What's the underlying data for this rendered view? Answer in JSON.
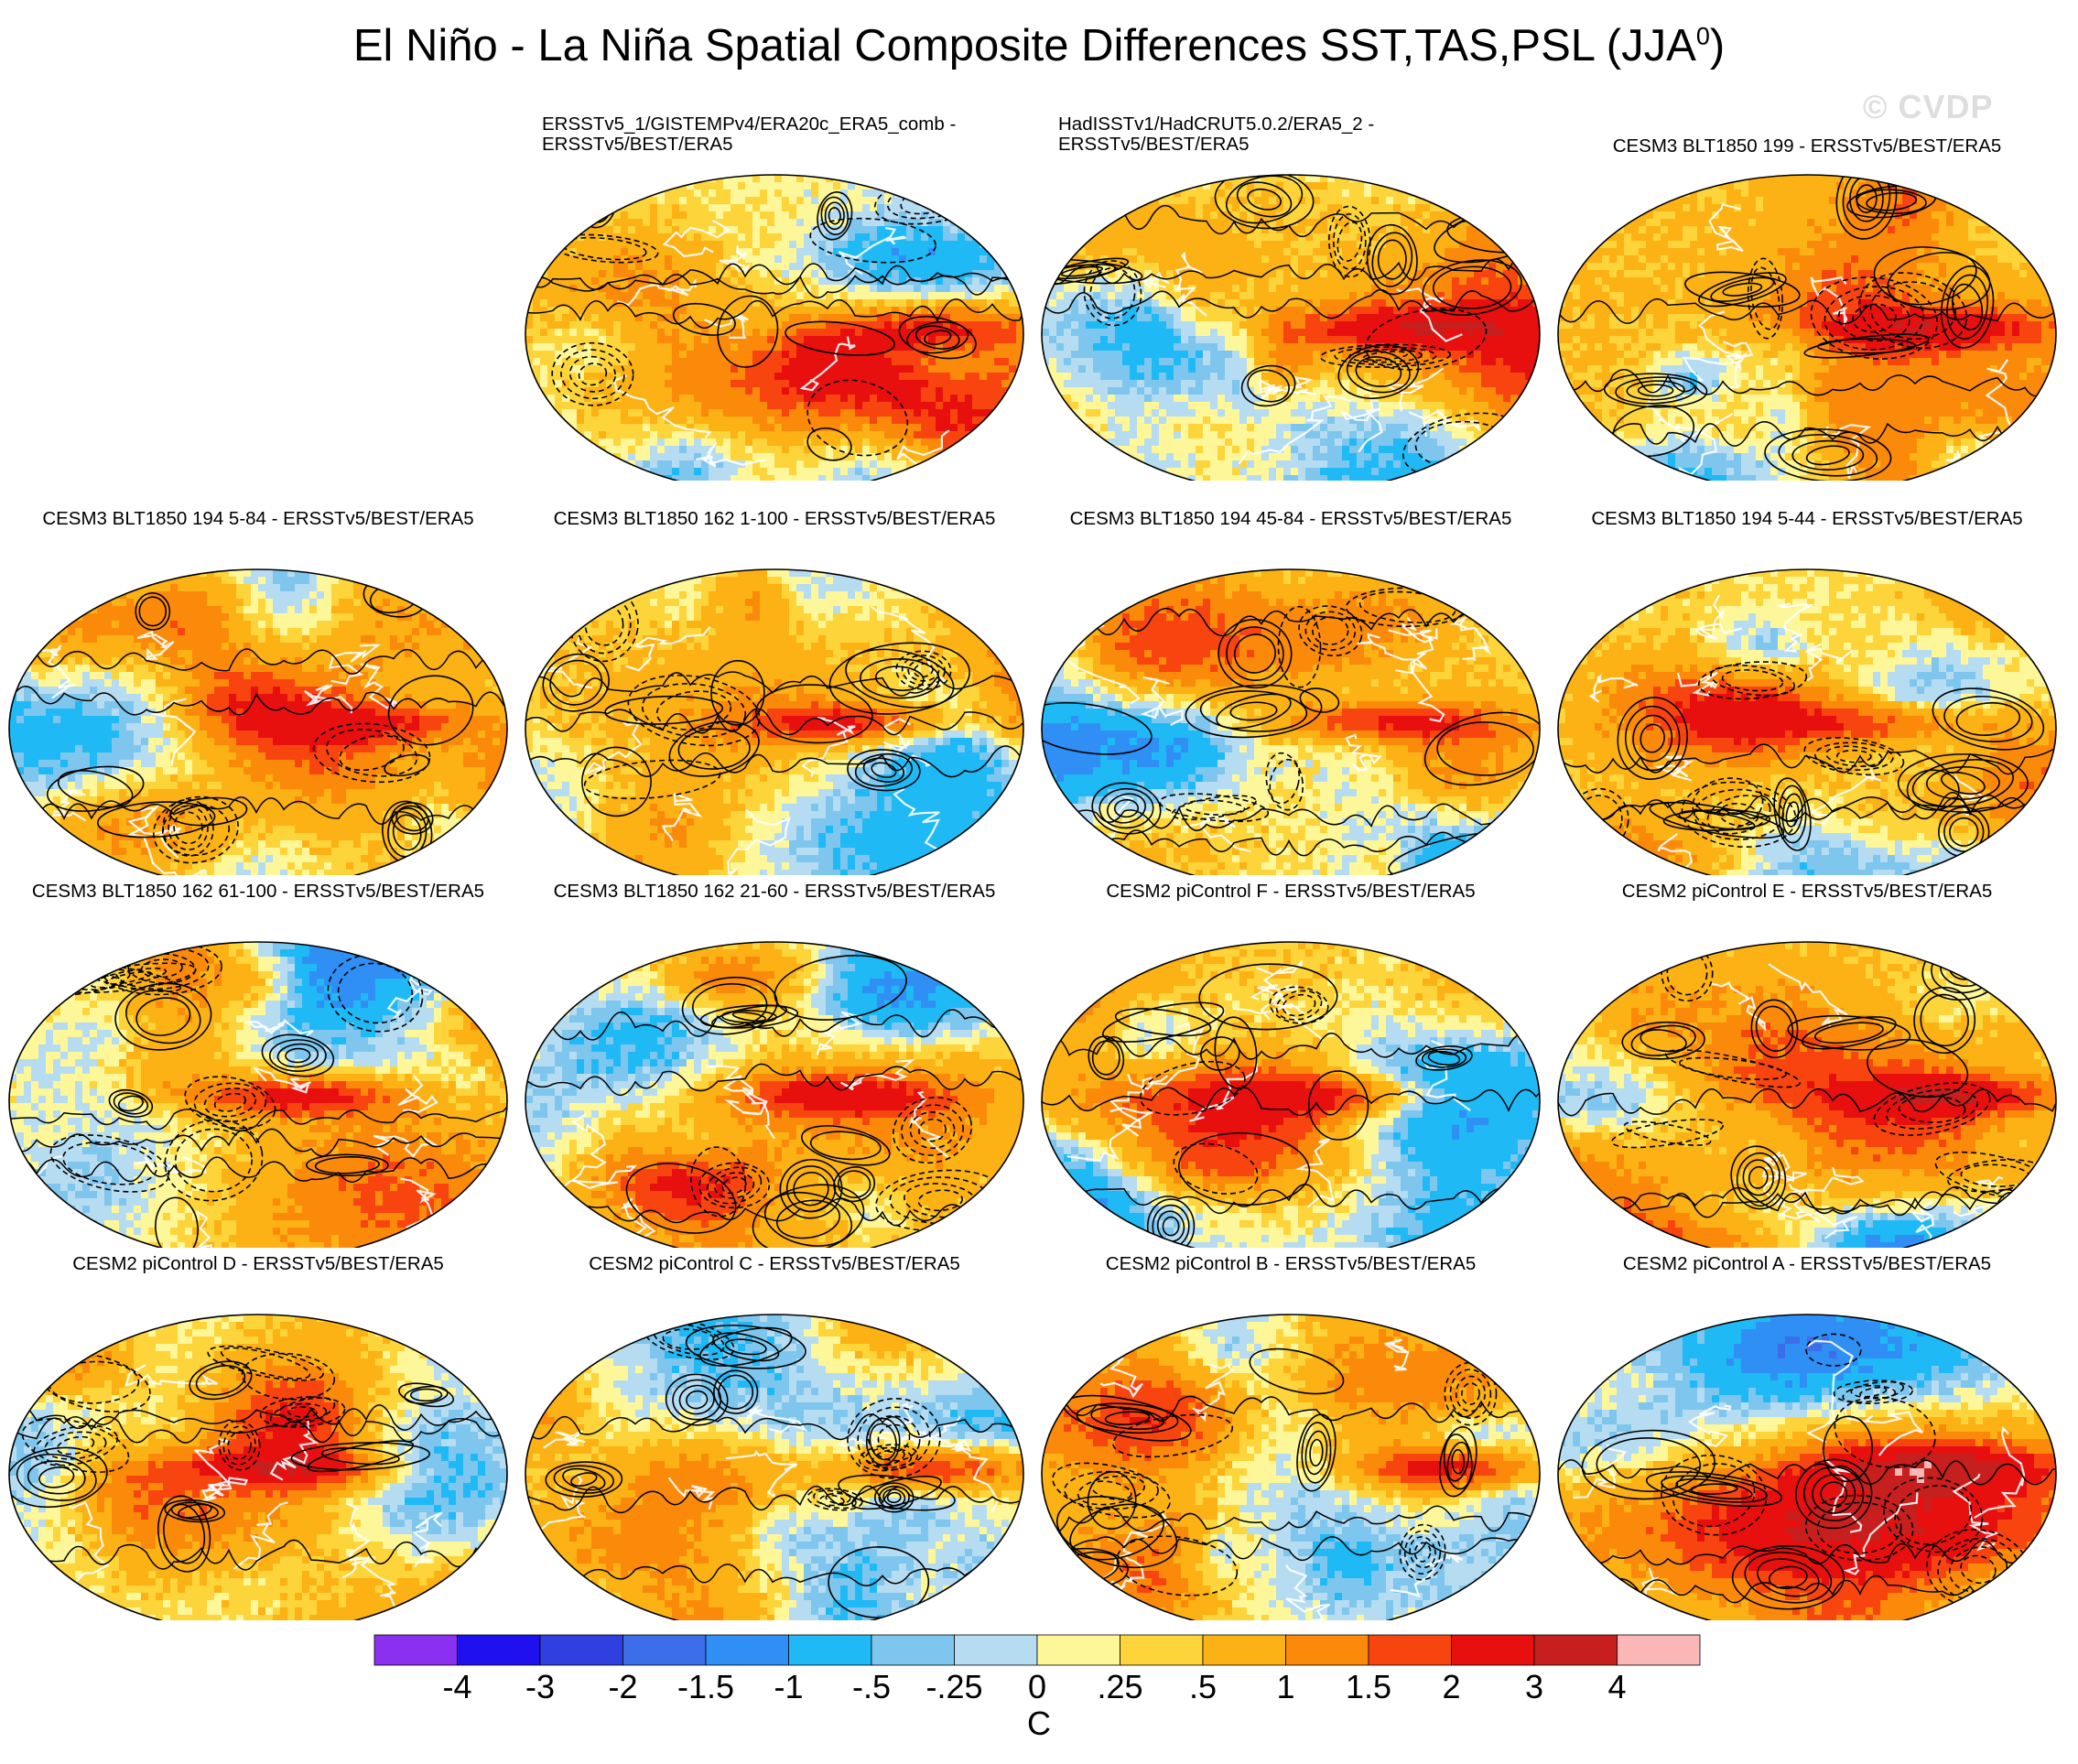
{
  "title": "El Niño - La Niña Spatial Composite Differences SST,TAS,PSL (JJA",
  "title_superscript": "0",
  "title_close": ")",
  "watermark": "© CVDP",
  "panels": [
    {
      "title": "ERSSTv5_1/GISTEMPv4/ERA20c_ERA5_comb -",
      "title2": "ERSSTv5/BEST/ERA5",
      "seed": 11,
      "bias": 0.25
    },
    {
      "title": "HadISSTv1/HadCRUT5.0.2/ERA5_2 -",
      "title2": "ERSSTv5/BEST/ERA5",
      "seed": 23,
      "bias": -0.2
    },
    {
      "title": "CESM3 BLT1850 199 - ERSSTv5/BEST/ERA5",
      "title2": "",
      "seed": 37,
      "bias": 0.55
    },
    {
      "title": "CESM3 BLT1850 194 5-84 - ERSSTv5/BEST/ERA5",
      "title2": "",
      "seed": 41,
      "bias": 0.2
    },
    {
      "title": "CESM3 BLT1850 162 1-100 - ERSSTv5/BEST/ERA5",
      "title2": "",
      "seed": 53,
      "bias": 0.15
    },
    {
      "title": "CESM3 BLT1850 194 45-84 - ERSSTv5/BEST/ERA5",
      "title2": "",
      "seed": 67,
      "bias": 0.1
    },
    {
      "title": "CESM3 BLT1850 194 5-44 - ERSSTv5/BEST/ERA5",
      "title2": "",
      "seed": 71,
      "bias": 0.2
    },
    {
      "title": "CESM3 BLT1850 162 61-100 - ERSSTv5/BEST/ERA5",
      "title2": "",
      "seed": 83,
      "bias": 0.45
    },
    {
      "title": "CESM3 BLT1850 162 21-60 - ERSSTv5/BEST/ERA5",
      "title2": "",
      "seed": 97,
      "bias": 0.2
    },
    {
      "title": "CESM2 piControl F - ERSSTv5/BEST/ERA5",
      "title2": "",
      "seed": 101,
      "bias": 0.0
    },
    {
      "title": "CESM2 piControl E - ERSSTv5/BEST/ERA5",
      "title2": "",
      "seed": 113,
      "bias": 0.35
    },
    {
      "title": "CESM2 piControl D - ERSSTv5/BEST/ERA5",
      "title2": "",
      "seed": 127,
      "bias": 0.15
    },
    {
      "title": "CESM2 piControl C - ERSSTv5/BEST/ERA5",
      "title2": "",
      "seed": 131,
      "bias": 0.2
    },
    {
      "title": "CESM2 piControl B - ERSSTv5/BEST/ERA5",
      "title2": "",
      "seed": 149,
      "bias": 0.05
    },
    {
      "title": "CESM2 piControl A - ERSSTv5/BEST/ERA5",
      "title2": "",
      "seed": 157,
      "bias": 0.1
    }
  ],
  "colorbar": {
    "colors": [
      "#8b2ff0",
      "#1f10f0",
      "#3040e0",
      "#3b6ee8",
      "#2f8ff5",
      "#1fbaf5",
      "#7ec6ee",
      "#b6dcf2",
      "#fdf79a",
      "#fdd43a",
      "#fcb114",
      "#fb8a0b",
      "#f8450f",
      "#e80f0f",
      "#c71e1e",
      "#fbb6b6"
    ],
    "labels": [
      "-4",
      "-3",
      "-2",
      "-1.5",
      "-1",
      "-.5",
      "-.25",
      "0",
      ".25",
      ".5",
      "1",
      "1.5",
      "2",
      "3",
      "4"
    ],
    "unit": "C"
  }
}
